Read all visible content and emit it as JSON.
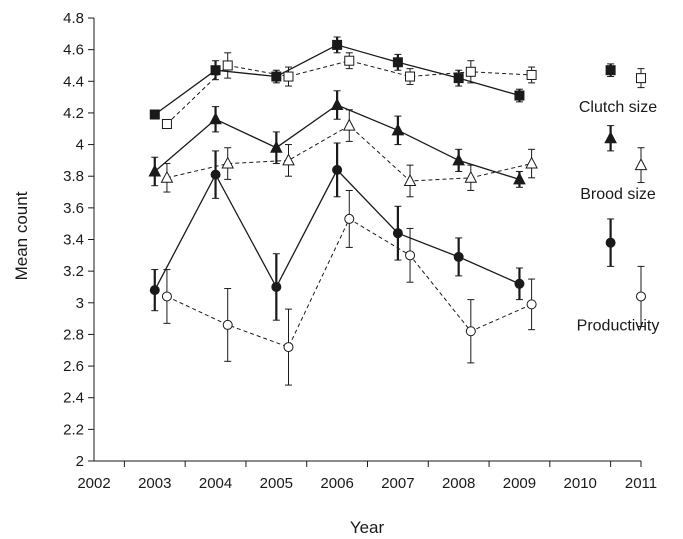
{
  "chart_data": {
    "type": "line",
    "title": "",
    "xlabel": "Year",
    "ylabel": "Mean count",
    "xlim": [
      2002,
      2011
    ],
    "ylim": [
      2,
      4.8
    ],
    "xticks": [
      "2002",
      "2003",
      "2004",
      "2005",
      "2006",
      "2007",
      "2008",
      "2009",
      "2010",
      "2011"
    ],
    "yticks": [
      "2",
      "2.2",
      "2.4",
      "2.6",
      "2.8",
      "3",
      "3.2",
      "3.4",
      "3.6",
      "3.8",
      "4",
      "4.2",
      "4.4",
      "4.6",
      "4.8"
    ],
    "grid": false,
    "legend_placement": "right",
    "legend": [
      {
        "label": "Clutch size",
        "filled_x": 2010.5,
        "filled_y": 4.47,
        "filled_err": 0.04,
        "open_x": 2011,
        "open_y": 4.42,
        "open_err": 0.06
      },
      {
        "label": "Brood size",
        "filled_x": 2010.5,
        "filled_y": 4.04,
        "filled_err": 0.08,
        "open_x": 2011,
        "open_y": 3.87,
        "open_err": 0.11
      },
      {
        "label": "Productivity",
        "filled_x": 2010.5,
        "filled_y": 3.38,
        "filled_err": 0.15,
        "open_x": 2011,
        "open_y": 3.04,
        "open_err": 0.19
      }
    ],
    "series": [
      {
        "group": "Clutch size",
        "marker": "square",
        "fill": "filled",
        "line": "solid",
        "x": [
          2003,
          2004,
          2005,
          2006,
          2007,
          2008,
          2009
        ],
        "y": [
          4.19,
          4.47,
          4.43,
          4.63,
          4.52,
          4.42,
          4.31
        ],
        "err": [
          0,
          0.06,
          0.04,
          0.05,
          0.05,
          0.05,
          0.04
        ]
      },
      {
        "group": "Clutch size",
        "marker": "square",
        "fill": "open",
        "line": "dashed",
        "x": [
          2003.2,
          2004.2,
          2005.2,
          2006.2,
          2007.2,
          2008.2,
          2009.2
        ],
        "y": [
          4.13,
          4.5,
          4.43,
          4.53,
          4.43,
          4.46,
          4.44
        ],
        "err": [
          0,
          0.08,
          0.06,
          0.05,
          0.05,
          0.07,
          0.05
        ]
      },
      {
        "group": "Brood size",
        "marker": "triangle",
        "fill": "filled",
        "line": "solid",
        "x": [
          2003,
          2004,
          2005,
          2006,
          2007,
          2008,
          2009
        ],
        "y": [
          3.83,
          4.16,
          3.98,
          4.25,
          4.09,
          3.9,
          3.78
        ],
        "err": [
          0.09,
          0.08,
          0.1,
          0.09,
          0.09,
          0.07,
          0.05
        ]
      },
      {
        "group": "Brood size",
        "marker": "triangle",
        "fill": "open",
        "line": "dashed",
        "x": [
          2003.2,
          2004.2,
          2005.2,
          2006.2,
          2007.2,
          2008.2,
          2009.2
        ],
        "y": [
          3.79,
          3.88,
          3.9,
          4.12,
          3.77,
          3.79,
          3.88
        ],
        "err": [
          0.09,
          0.1,
          0.1,
          0.1,
          0.1,
          0.08,
          0.09
        ]
      },
      {
        "group": "Productivity",
        "marker": "circle",
        "fill": "filled",
        "line": "solid",
        "x": [
          2003,
          2004,
          2005,
          2006,
          2007,
          2008,
          2009
        ],
        "y": [
          3.08,
          3.81,
          3.1,
          3.84,
          3.44,
          3.29,
          3.12
        ],
        "err": [
          0.13,
          0.15,
          0.21,
          0.17,
          0.17,
          0.12,
          0.1
        ]
      },
      {
        "group": "Productivity",
        "marker": "circle",
        "fill": "open",
        "line": "dashed",
        "x": [
          2003.2,
          2004.2,
          2005.2,
          2006.2,
          2007.2,
          2008.2,
          2009.2
        ],
        "y": [
          3.04,
          2.86,
          2.72,
          3.53,
          3.3,
          2.82,
          2.99
        ],
        "err": [
          0.17,
          0.23,
          0.24,
          0.18,
          0.17,
          0.2,
          0.16
        ]
      }
    ]
  }
}
